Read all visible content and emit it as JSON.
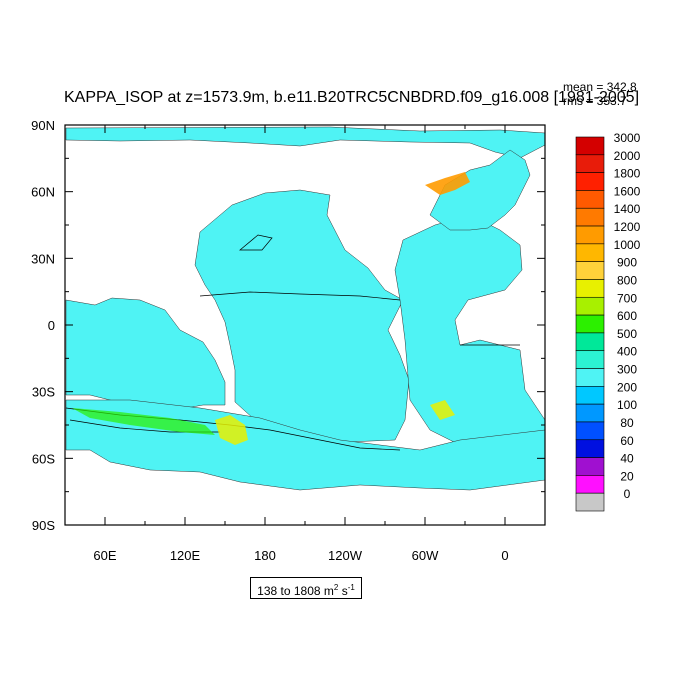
{
  "title": "KAPPA_ISOP at z=1573.9m, b.e11.B20TRC5CNBDRD.f09_g16.008 [1981-2005]",
  "stats": {
    "mean": "mean = 342.8",
    "rms": "rms = 353.7"
  },
  "range_box": {
    "prefix": "138 to 1808 m",
    "unit_sup1": "2",
    "mid": " s",
    "unit_sup2": "-1"
  },
  "map": {
    "ocean_color": "#4ff3f4",
    "land_color": "#ffffff",
    "y_tick_labels": [
      "90N",
      "60N",
      "30N",
      "0",
      "30S",
      "60S",
      "90S"
    ],
    "x_tick_labels": [
      "60E",
      "120E",
      "180",
      "120W",
      "60W",
      "0"
    ]
  },
  "colorbar": {
    "labels": [
      "3000",
      "2000",
      "1800",
      "1600",
      "1400",
      "1200",
      "1000",
      "900",
      "800",
      "700",
      "600",
      "500",
      "400",
      "300",
      "200",
      "100",
      "80",
      "60",
      "40",
      "20",
      "0"
    ],
    "colors": [
      "#d40000",
      "#e81c0a",
      "#ff2000",
      "#ff5a00",
      "#ff7a00",
      "#ff9b00",
      "#ffb700",
      "#ffd23a",
      "#e8f000",
      "#a8f000",
      "#2cf000",
      "#00e899",
      "#2cf3d3",
      "#4ff3f4",
      "#00c8ff",
      "#0098ff",
      "#0050ff",
      "#0010e0",
      "#a010d0",
      "#ff10ff",
      "#c8c8c8"
    ]
  }
}
